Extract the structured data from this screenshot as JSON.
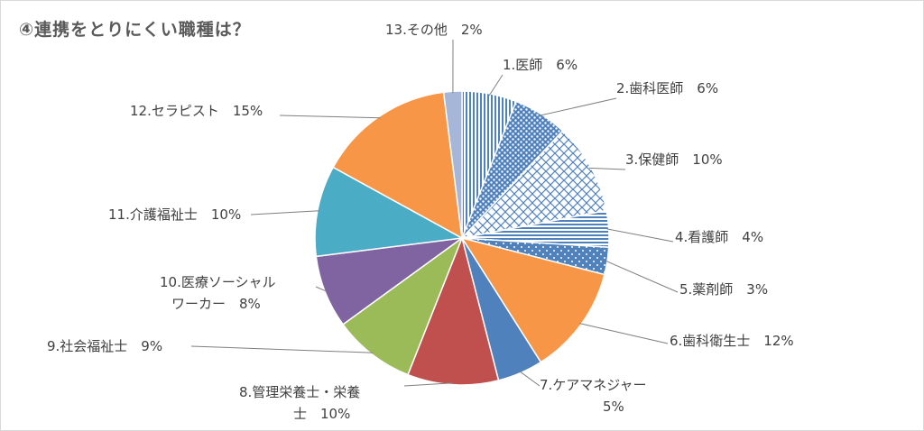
{
  "chart_data": {
    "type": "pie",
    "title": "④連携をとりにくい職種は？",
    "slices": [
      {
        "label": [
          "1.医師　6%"
        ],
        "value": 6,
        "fill": "pat-vlines"
      },
      {
        "label": [
          "2.歯科医師　6%"
        ],
        "value": 6,
        "fill": "pat-dots"
      },
      {
        "label": [
          "3.保健師　10%"
        ],
        "value": 10,
        "fill": "pat-lattice"
      },
      {
        "label": [
          "4.看護師　4%"
        ],
        "value": 4,
        "fill": "pat-hlines"
      },
      {
        "label": [
          "5.薬剤師　3%"
        ],
        "value": 3,
        "fill": "pat-sparse"
      },
      {
        "label": [
          "6.歯科衛生士　12%"
        ],
        "value": 12,
        "fill": "#F79646"
      },
      {
        "label": [
          "7.ケアマネジャー",
          "5%"
        ],
        "value": 5,
        "fill": "#4F81BD"
      },
      {
        "label": [
          "8.管理栄養士・栄養",
          "士　10%"
        ],
        "value": 10,
        "fill": "#C0504D"
      },
      {
        "label": [
          "9.社会福祉士　9%"
        ],
        "value": 9,
        "fill": "#9BBB59"
      },
      {
        "label": [
          "10.医療ソーシャル",
          "ワーカー　8%"
        ],
        "value": 8,
        "fill": "#8064A2"
      },
      {
        "label": [
          "11.介護福祉士　10%"
        ],
        "value": 10,
        "fill": "#4BACC6"
      },
      {
        "label": [
          "12.セラピスト　15%"
        ],
        "value": 15,
        "fill": "#F79646"
      },
      {
        "label": [
          "13.その他　2%"
        ],
        "value": 2,
        "fill": "#A5B6D9"
      }
    ]
  },
  "colors": {
    "primary_blue": "#4F81BD",
    "text": "#404040",
    "title": "#595959",
    "leader_line": "#7f7f7f"
  }
}
